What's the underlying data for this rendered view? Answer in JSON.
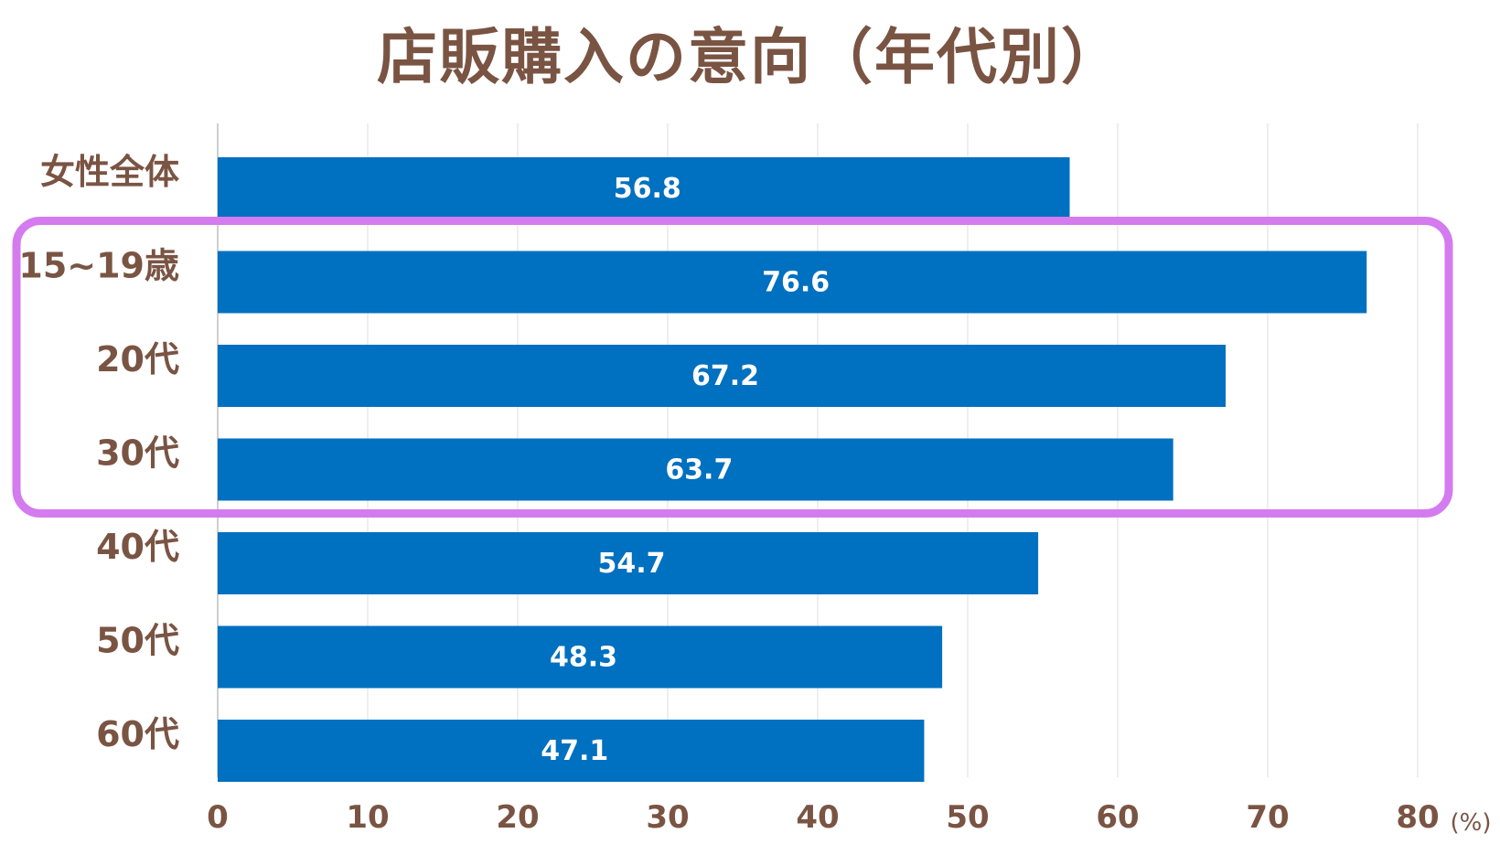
{
  "chart_data": {
    "type": "bar",
    "orientation": "horizontal",
    "title": "店販購入の意向（年代別）",
    "categories": [
      "女性全体",
      "15~19歳",
      "20代",
      "30代",
      "40代",
      "50代",
      "60代"
    ],
    "values": [
      56.8,
      76.6,
      67.2,
      63.7,
      54.7,
      48.3,
      47.1
    ],
    "value_labels": [
      "56.8",
      "76.6",
      "67.2",
      "63.7",
      "54.7",
      "48.3",
      "47.1"
    ],
    "xlim": [
      0,
      80
    ],
    "xticks": [
      0,
      10,
      20,
      30,
      40,
      50,
      60,
      70,
      80
    ],
    "xtick_labels": [
      "0",
      "10",
      "20",
      "30",
      "40",
      "50",
      "60",
      "70",
      "80"
    ],
    "unit": "(%)",
    "grid": "vertical",
    "bar_color": "#0070c0",
    "text_color": "#7a5443",
    "highlight": {
      "categories": [
        "15~19歳",
        "20代",
        "30代"
      ],
      "color": "#d47bef"
    }
  }
}
